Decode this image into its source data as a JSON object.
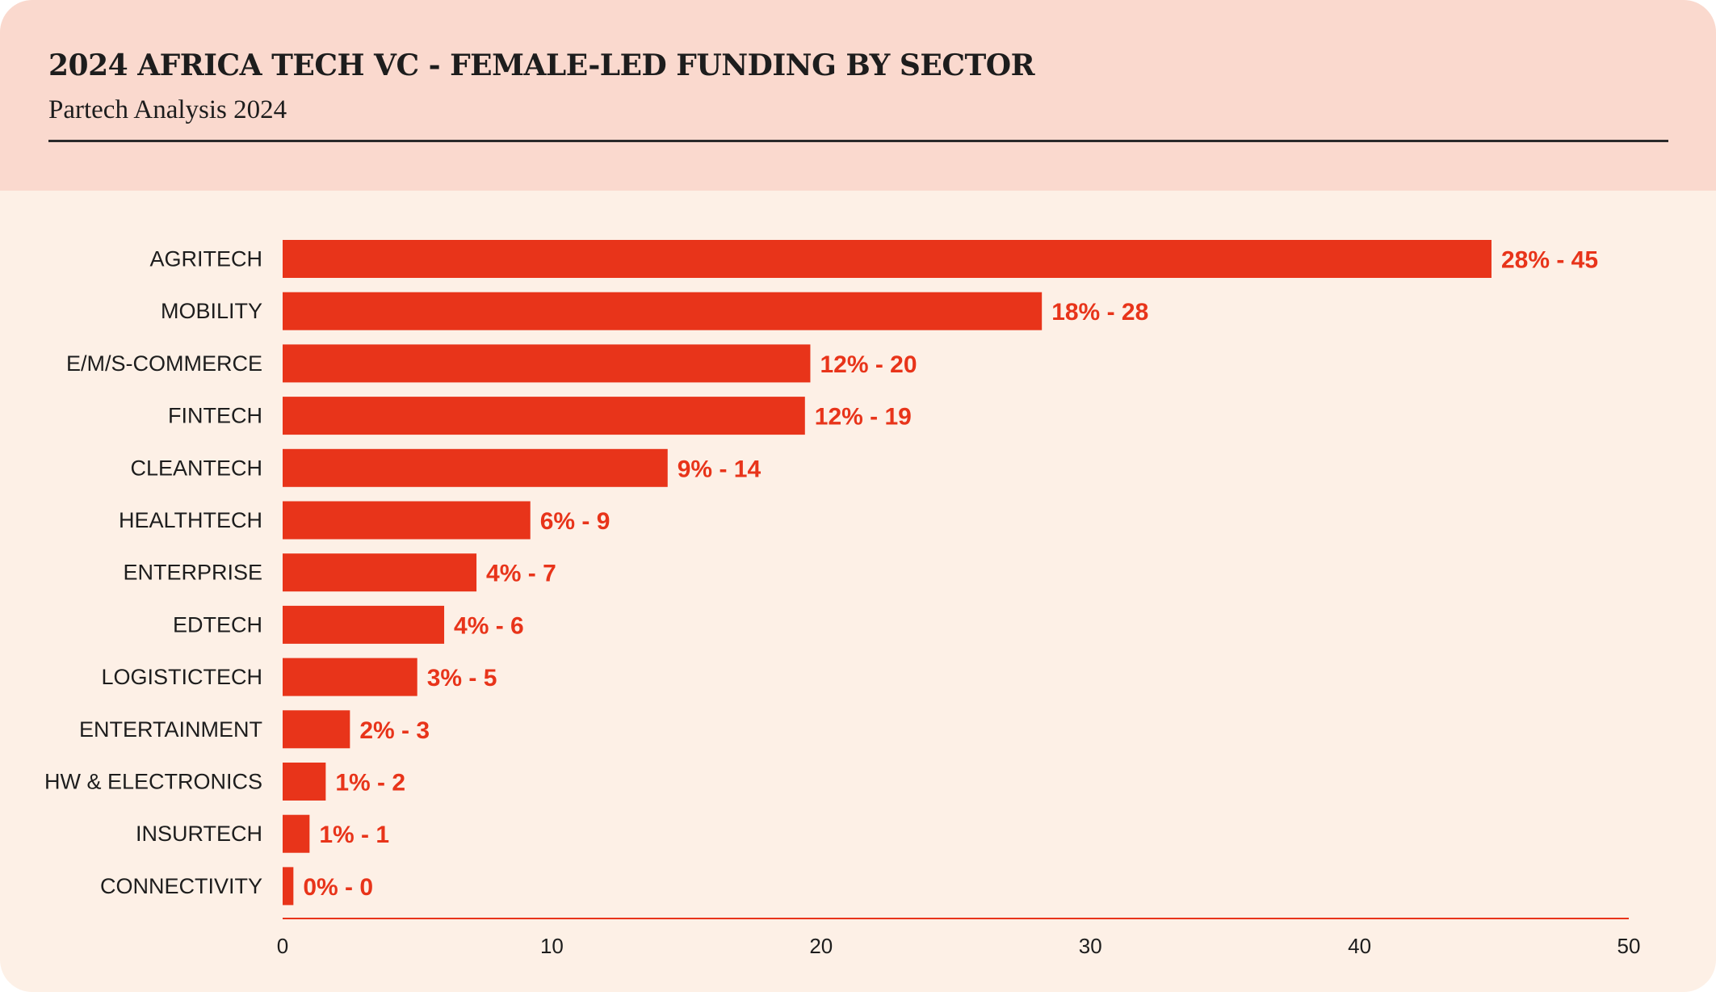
{
  "header": {
    "title": "2024 AFRICA TECH VC - FEMALE-LED FUNDING BY SECTOR",
    "subtitle": "Partech Analysis 2024"
  },
  "colors": {
    "bar": "#e8341a",
    "header_bg": "#fad9ce",
    "body_bg": "#fdf0e6",
    "text": "#1d1d1d"
  },
  "chart_data": {
    "type": "bar",
    "orientation": "horizontal",
    "categories": [
      "AGRITECH",
      "MOBILITY",
      "E/M/S-COMMERCE",
      "FINTECH",
      "CLEANTECH",
      "HEALTHTECH",
      "ENTERPRISE",
      "EDTECH",
      "LOGISTICTECH",
      "ENTERTAINMENT",
      "HW & ELECTRONICS",
      "INSURTECH",
      "CONNECTIVITY"
    ],
    "values": [
      44.9,
      28.2,
      19.6,
      19.4,
      14.3,
      9.2,
      7.2,
      6.0,
      5.0,
      2.5,
      1.6,
      1.0,
      0.4
    ],
    "data_labels": [
      "28% - 45",
      "18% - 28",
      "12% - 20",
      "12% - 19",
      "9% - 14",
      "6% - 9",
      "4% - 7",
      "4% - 6",
      "3% - 5",
      "2% - 3",
      "1% - 2",
      "1% - 1",
      "0% - 0"
    ],
    "xlim": [
      0,
      50
    ],
    "xticks": [
      "0",
      "10",
      "20",
      "30",
      "40",
      "50"
    ],
    "grid": false,
    "title": "2024 AFRICA TECH VC - FEMALE-LED FUNDING BY SECTOR",
    "subtitle": "Partech Analysis 2024"
  }
}
